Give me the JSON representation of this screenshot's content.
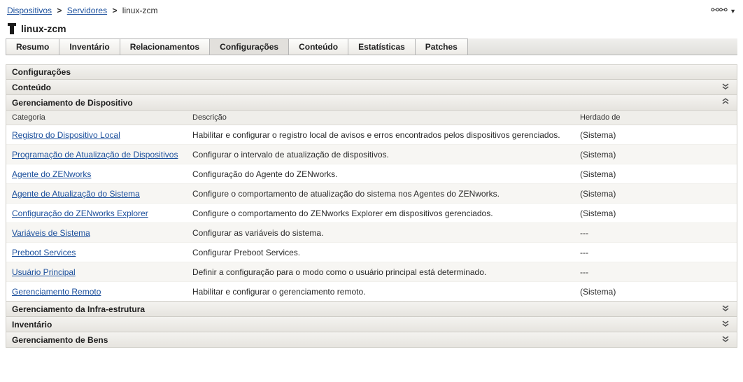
{
  "breadcrumb": {
    "root": "Dispositivos",
    "mid": "Servidores",
    "leaf": "linux-zcm"
  },
  "title": "linux-zcm",
  "tabs": [
    {
      "label": "Resumo",
      "active": false
    },
    {
      "label": "Inventário",
      "active": false
    },
    {
      "label": "Relacionamentos",
      "active": false
    },
    {
      "label": "Configurações",
      "active": true
    },
    {
      "label": "Conteúdo",
      "active": false
    },
    {
      "label": "Estatísticas",
      "active": false
    },
    {
      "label": "Patches",
      "active": false
    }
  ],
  "sections": {
    "config_header": "Configurações",
    "content_header": "Conteúdo",
    "device_mgmt_header": "Gerenciamento de Dispositivo",
    "infra_header": "Gerenciamento da Infra-estrutura",
    "inventory_header": "Inventário",
    "assets_header": "Gerenciamento de Bens"
  },
  "grid": {
    "columns": {
      "cat": "Categoria",
      "desc": "Descrição",
      "inh": "Herdado de"
    },
    "rows": [
      {
        "cat": "Registro do Dispositivo Local",
        "desc": "Habilitar e configurar o registro local de avisos e erros encontrados pelos dispositivos gerenciados.",
        "inh": "(Sistema)"
      },
      {
        "cat": "Programação de Atualização de Dispositivos",
        "desc": "Configurar o intervalo de atualização de dispositivos.",
        "inh": "(Sistema)"
      },
      {
        "cat": "Agente do ZENworks",
        "desc": "Configuração do Agente do ZENworks.",
        "inh": "(Sistema)"
      },
      {
        "cat": "Agente de Atualização do Sistema",
        "desc": "Configure o comportamento de atualização do sistema nos Agentes do ZENworks.",
        "inh": "(Sistema)"
      },
      {
        "cat": "Configuração do ZENworks Explorer",
        "desc": "Configure o comportamento do ZENworks Explorer em dispositivos gerenciados.",
        "inh": "(Sistema)"
      },
      {
        "cat": "Variáveis de Sistema",
        "desc": "Configurar as variáveis do sistema.",
        "inh": "---"
      },
      {
        "cat": "Preboot Services",
        "desc": "Configurar Preboot Services.",
        "inh": "---"
      },
      {
        "cat": "Usuário Principal",
        "desc": "Definir a configuração para o modo como o usuário principal está determinado.",
        "inh": "---"
      },
      {
        "cat": "Gerenciamento Remoto",
        "desc": "Habilitar e configurar o gerenciamento remoto.",
        "inh": "(Sistema)"
      }
    ]
  },
  "glyphs": {
    "chev_down": "⌄",
    "double_down": "»",
    "link": "⚭"
  }
}
